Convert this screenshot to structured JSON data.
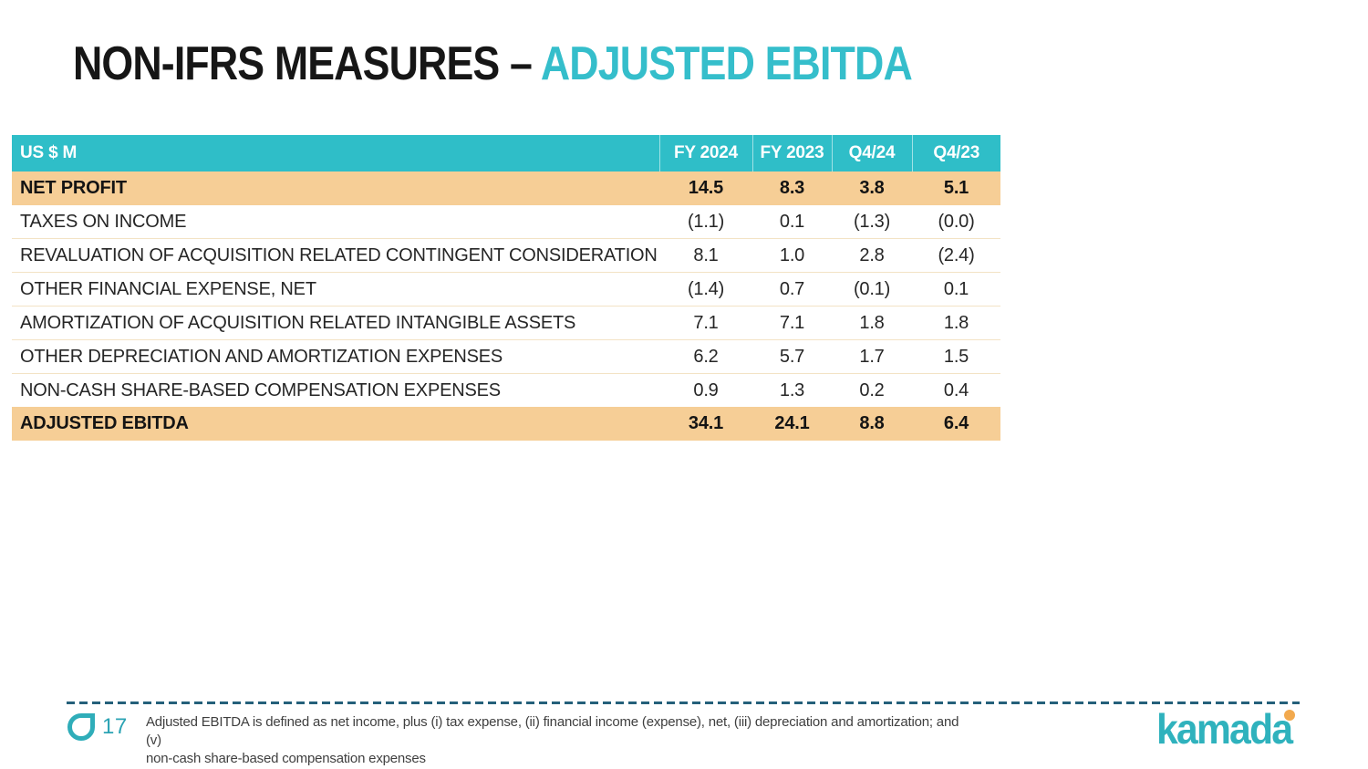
{
  "slide": {
    "title": {
      "prefix": "NON-IFRS MEASURES – ",
      "highlight": "ADJUSTED EBITDA"
    },
    "page_number": "17",
    "footnote_line1": "Adjusted EBITDA is defined as net income, plus (i) tax expense, (ii) financial income (expense), net, (iii) depreciation and amortization; and (v)",
    "footnote_line2": "non-cash share-based compensation expenses",
    "logo_text": "kamada"
  },
  "table": {
    "unit_label": "US $ M",
    "columns": [
      "FY 2024",
      "FY 2023",
      "Q4/24",
      "Q4/23"
    ],
    "rows": [
      {
        "label": "NET PROFIT",
        "values": [
          "14.5",
          "8.3",
          "3.8",
          "5.1"
        ],
        "emphasis": true
      },
      {
        "label": "TAXES ON INCOME",
        "values": [
          "(1.1)",
          "0.1",
          "(1.3)",
          "(0.0)"
        ],
        "emphasis": false
      },
      {
        "label": "REVALUATION OF ACQUISITION RELATED CONTINGENT CONSIDERATION",
        "values": [
          "8.1",
          "1.0",
          "2.8",
          "(2.4)"
        ],
        "emphasis": false
      },
      {
        "label": "OTHER FINANCIAL EXPENSE, NET",
        "values": [
          "(1.4)",
          "0.7",
          "(0.1)",
          "0.1"
        ],
        "emphasis": false
      },
      {
        "label": "AMORTIZATION OF ACQUISITION RELATED INTANGIBLE ASSETS",
        "values": [
          "7.1",
          "7.1",
          "1.8",
          "1.8"
        ],
        "emphasis": false
      },
      {
        "label": "OTHER DEPRECIATION AND AMORTIZATION EXPENSES",
        "values": [
          "6.2",
          "5.7",
          "1.7",
          "1.5"
        ],
        "emphasis": false
      },
      {
        "label": "NON-CASH SHARE-BASED COMPENSATION EXPENSES",
        "values": [
          "0.9",
          "1.3",
          "0.2",
          "0.4"
        ],
        "emphasis": false
      },
      {
        "label": "ADJUSTED EBITDA",
        "values": [
          "34.1",
          "24.1",
          "8.8",
          "6.4"
        ],
        "emphasis": true
      }
    ]
  },
  "colors": {
    "header_teal": "#2fbec8",
    "title_highlight_teal": "#35becb",
    "row_peach": "#f6ce96",
    "row_separator_tan": "#f3e3c5",
    "dashed_line": "#24607a",
    "logo_teal": "#2fb2bd",
    "logo_dot_orange": "#f2a94e",
    "page_number_teal": "#2ba3b4"
  }
}
